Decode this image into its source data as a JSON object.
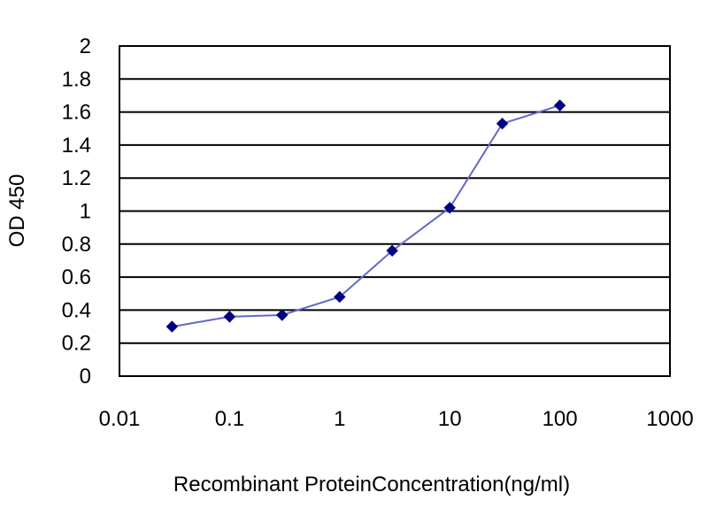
{
  "chart_data": {
    "type": "line",
    "xlabel": "Recombinant ProteinConcentration(ng/ml)",
    "ylabel": "OD 450",
    "x_scale": "log",
    "xlim": [
      0.01,
      1000
    ],
    "ylim": [
      0,
      2
    ],
    "x_ticks": [
      "0.01",
      "0.1",
      "1",
      "10",
      "100",
      "1000"
    ],
    "y_ticks": [
      "0",
      "0.2",
      "0.4",
      "0.6",
      "0.8",
      "1",
      "1.2",
      "1.4",
      "1.6",
      "1.8",
      "2"
    ],
    "grid": "horizontal",
    "series": [
      {
        "x": [
          0.03,
          0.1,
          0.3,
          1,
          3,
          10,
          30,
          100
        ],
        "y": [
          0.3,
          0.36,
          0.37,
          0.48,
          0.76,
          1.02,
          1.53,
          1.64
        ]
      }
    ],
    "colors": {
      "line": "#6666cc",
      "marker": "#000080",
      "grid": "#000000",
      "frame": "#000000"
    }
  }
}
